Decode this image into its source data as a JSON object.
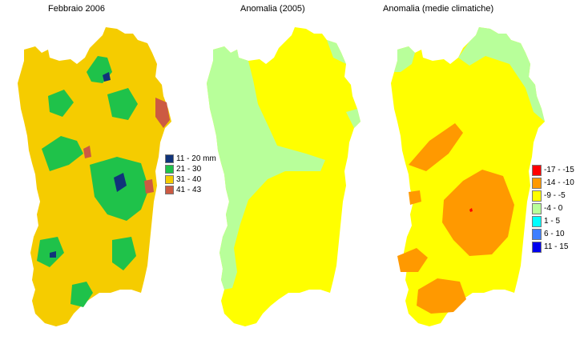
{
  "maps": [
    {
      "title": "Febbraio 2006",
      "base_color": "#f5cc00",
      "legend": [
        {
          "label": "11 - 20 mm",
          "color": "#10337a"
        },
        {
          "label": "21 - 30",
          "color": "#1fc24a"
        },
        {
          "label": "31 - 40",
          "color": "#f5cc00"
        },
        {
          "label": "41 - 43",
          "color": "#cc5a42"
        }
      ]
    },
    {
      "title": "Anomalia (2005)",
      "base_color": "#ffff00",
      "legend": []
    },
    {
      "title": "Anomalia (medie climatiche)",
      "base_color": "#ffff00",
      "legend": [
        {
          "label": "-17 - -15",
          "color": "#ff0000"
        },
        {
          "label": "-14 - -10",
          "color": "#ff9900"
        },
        {
          "label": "-9 - -5",
          "color": "#ffff00"
        },
        {
          "label": "-4 - 0",
          "color": "#b8ff9a"
        },
        {
          "label": "1 - 5",
          "color": "#00ffff"
        },
        {
          "label": "6 - 10",
          "color": "#3d7fff"
        },
        {
          "label": "11 - 15",
          "color": "#0000ee"
        }
      ]
    }
  ]
}
